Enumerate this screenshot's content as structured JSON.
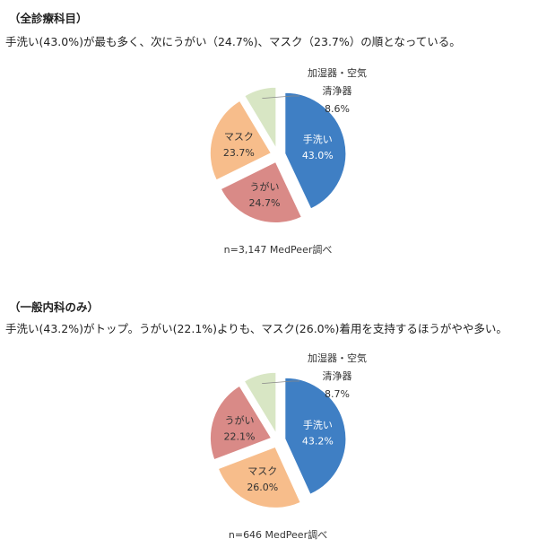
{
  "sections": [
    {
      "title": "（全診療科目）",
      "summary": "手洗い(43.0%)が最も多く、次にうがい（24.7%)、マスク（23.7%）の順となっている。",
      "note": "n=3,147  MedPeer調べ"
    },
    {
      "title": "（一般内科のみ）",
      "summary": "手洗い(43.2%)がトップ。うがい(22.1%)よりも、マスク(26.0%)着用を支持するほうがやや多い。",
      "note": "n=646  MedPeer調べ"
    }
  ],
  "chart_data": [
    {
      "type": "pie",
      "title": "",
      "slices": [
        {
          "label": "手洗い",
          "value": 43.0,
          "display": "43.0%",
          "color": "#3f7fc4"
        },
        {
          "label": "うがい",
          "value": 24.7,
          "display": "24.7%",
          "color": "#d98a87"
        },
        {
          "label": "マスク",
          "value": 23.7,
          "display": "23.7%",
          "color": "#f7bd8b"
        },
        {
          "label": "加湿器・空気清浄器",
          "label_lines": [
            "加湿器・空気",
            "清浄器"
          ],
          "value": 8.6,
          "display": "8.6%",
          "color": "#d8e6c4"
        }
      ],
      "exploded": true,
      "legend": "none"
    },
    {
      "type": "pie",
      "title": "",
      "slices": [
        {
          "label": "手洗い",
          "value": 43.2,
          "display": "43.2%",
          "color": "#3f7fc4"
        },
        {
          "label": "マスク",
          "value": 26.0,
          "display": "26.0%",
          "color": "#f7bd8b"
        },
        {
          "label": "うがい",
          "value": 22.1,
          "display": "22.1%",
          "color": "#d98a87"
        },
        {
          "label": "加湿器・空気清浄器",
          "label_lines": [
            "加湿器・空気",
            "清浄器"
          ],
          "value": 8.7,
          "display": "8.7%",
          "color": "#d8e6c4"
        }
      ],
      "exploded": true,
      "legend": "none"
    }
  ]
}
